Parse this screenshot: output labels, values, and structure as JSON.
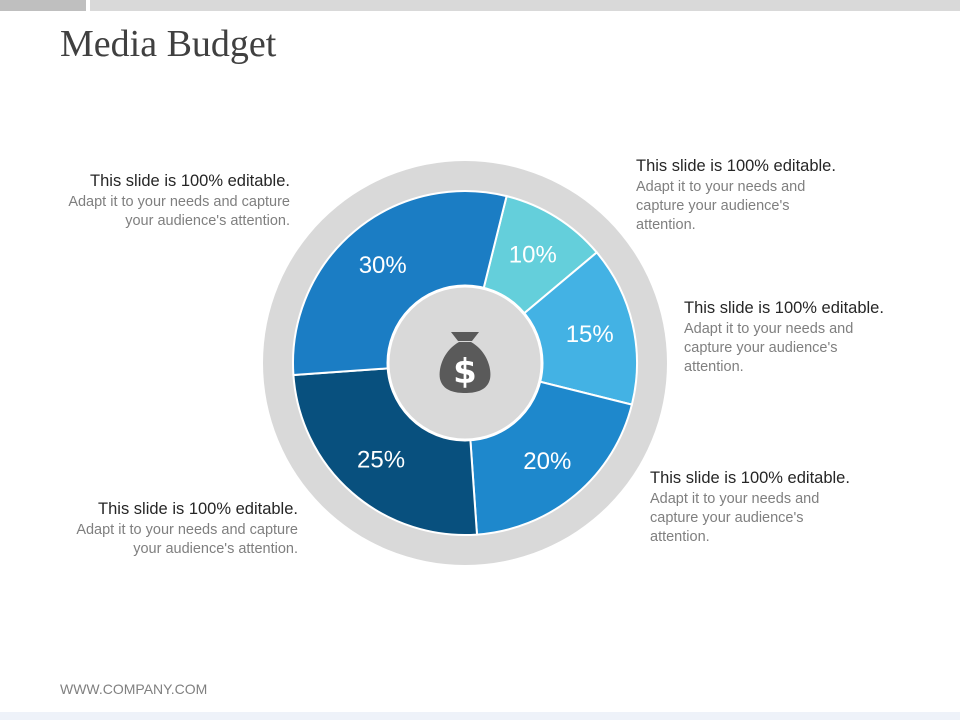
{
  "title": "Media Budget",
  "footer": "WWW.COMPANY.COM",
  "callouts": [
    {
      "heading": "This slide is 100% editable.",
      "body": "Adapt it to your needs and capture your audience's attention."
    },
    {
      "heading": "This slide is 100% editable.",
      "body": "Adapt it to your needs and capture your audience's attention."
    },
    {
      "heading": "This slide is 100% editable.",
      "body": "Adapt it to your needs and capture your audience's attention."
    },
    {
      "heading": "This slide is 100% editable.",
      "body": "Adapt it to your needs and capture your audience's attention."
    },
    {
      "heading": "This slide is 100% editable.",
      "body": "Adapt it to your needs and capture your audience's attention."
    }
  ],
  "center_icon": "money-bag-icon",
  "colors": {
    "ring": "#d9d9d9",
    "center": "#d9d9d9",
    "icon": "#5a5a5a",
    "slices": [
      "#64cfdb",
      "#43b2e4",
      "#1e88cc",
      "#08507e",
      "#1b7dc4"
    ]
  },
  "chart_data": {
    "type": "pie",
    "title": "",
    "slices": [
      {
        "label": "10%",
        "value": 10
      },
      {
        "label": "15%",
        "value": 15
      },
      {
        "label": "20%",
        "value": 20
      },
      {
        "label": "25%",
        "value": 25
      },
      {
        "label": "30%",
        "value": 30
      }
    ]
  }
}
